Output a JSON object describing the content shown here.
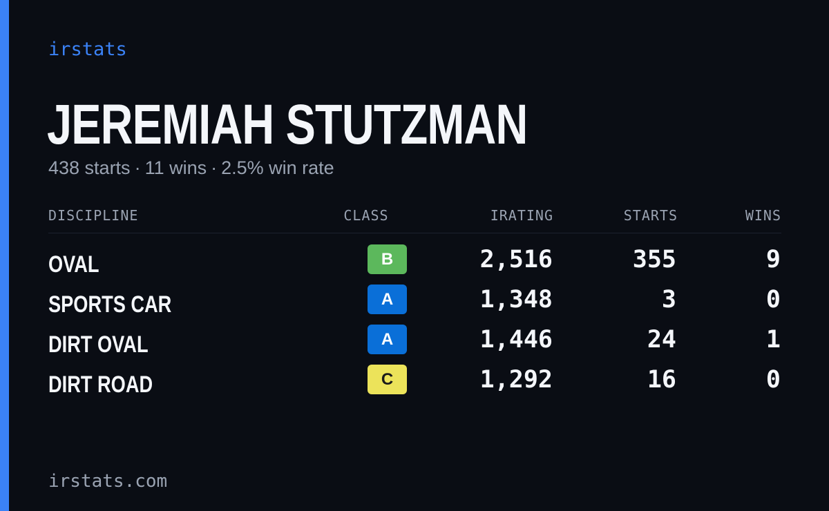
{
  "brand": "irstats",
  "player": {
    "name": "JEREMIAH STUTZMAN",
    "starts_text": "438 starts",
    "wins_text": "11 wins",
    "win_rate_text": "2.5% win rate",
    "separator": "·"
  },
  "table": {
    "headers": {
      "discipline": "DISCIPLINE",
      "class": "CLASS",
      "irating": "IRATING",
      "starts": "STARTS",
      "wins": "WINS"
    },
    "rows": [
      {
        "discipline": "OVAL",
        "class": "B",
        "class_color": "#5cb85c",
        "class_text_color": "#ffffff",
        "irating": "2,516",
        "starts": "355",
        "wins": "9"
      },
      {
        "discipline": "SPORTS CAR",
        "class": "A",
        "class_color": "#0a6fd8",
        "class_text_color": "#ffffff",
        "irating": "1,348",
        "starts": "3",
        "wins": "0"
      },
      {
        "discipline": "DIRT OVAL",
        "class": "A",
        "class_color": "#0a6fd8",
        "class_text_color": "#ffffff",
        "irating": "1,446",
        "starts": "24",
        "wins": "1"
      },
      {
        "discipline": "DIRT ROAD",
        "class": "C",
        "class_color": "#ece35a",
        "class_text_color": "#1a1a1a",
        "irating": "1,292",
        "starts": "16",
        "wins": "0"
      }
    ]
  },
  "footer": "irstats.com",
  "colors": {
    "background": "#0a0d14",
    "accent": "#3b82f6",
    "text_primary": "#f4f6fa",
    "text_muted": "#9aa3b2"
  }
}
